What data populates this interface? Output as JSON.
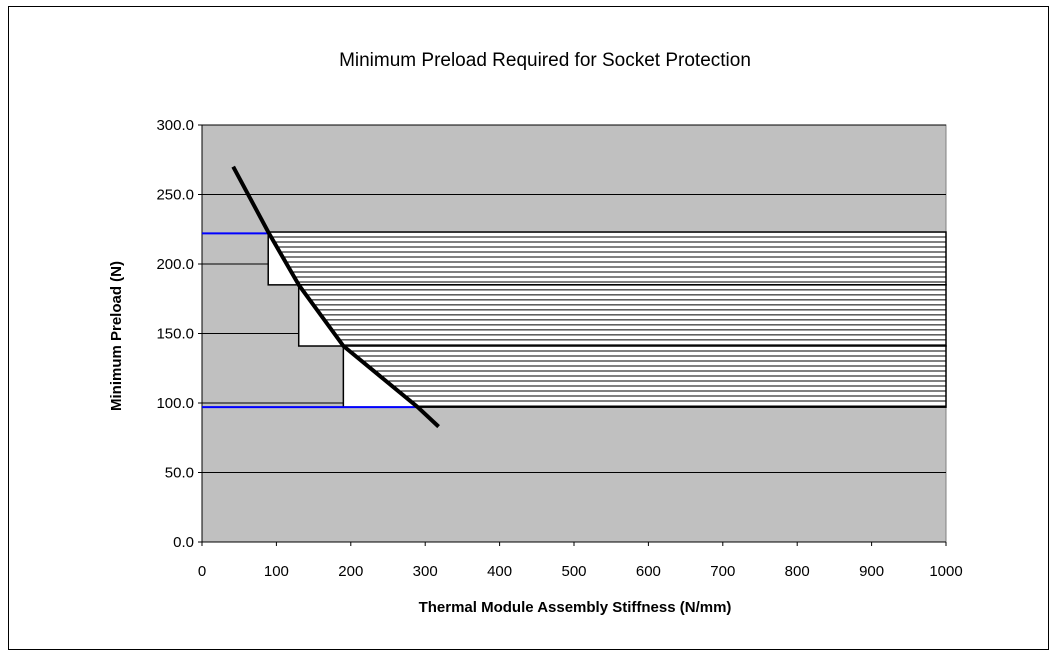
{
  "chart_data": {
    "type": "line",
    "title": "Minimum Preload Required for Socket Protection",
    "xlabel": "Thermal Module Assembly Stiffness (N/mm)",
    "ylabel": "Minimum Preload (N)",
    "xlim": [
      0,
      1000
    ],
    "ylim": [
      0,
      300
    ],
    "x_ticks": [
      0,
      100,
      200,
      300,
      400,
      500,
      600,
      700,
      800,
      900,
      1000
    ],
    "y_ticks": [
      "0.0",
      "50.0",
      "100.0",
      "150.0",
      "200.0",
      "250.0",
      "300.0"
    ],
    "grid": "horizontal",
    "legend": "none",
    "colors": {
      "plot_area": "#c0c0c0",
      "curve": "#000000",
      "reference_lines": "#0000ff",
      "hatch": "#000000"
    },
    "series": [
      {
        "points": [
          {
            "x": 42,
            "y": 270
          },
          {
            "x": 90,
            "y": 222
          },
          {
            "x": 130,
            "y": 185
          },
          {
            "x": 190,
            "y": 141
          },
          {
            "x": 290,
            "y": 97
          },
          {
            "x": 318,
            "y": 83
          }
        ]
      }
    ],
    "reference_lines": [
      {
        "y": 222,
        "x_from": 0,
        "x_to": 90
      },
      {
        "y": 97,
        "x_from": 0,
        "x_to": 290
      }
    ],
    "hatched_regions": [
      {
        "y_from": 185,
        "y_to": 223,
        "x_to": 1000
      },
      {
        "y_from": 141,
        "y_to": 185,
        "x_to": 1000
      },
      {
        "y_from": 97,
        "y_to": 141,
        "x_to": 1000
      }
    ]
  }
}
